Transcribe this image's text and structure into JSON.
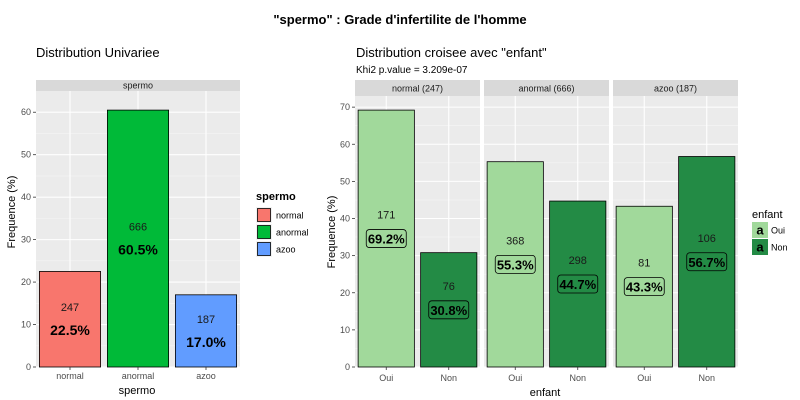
{
  "page": {
    "title": "\"spermo\" : Grade d'infertilite de l'homme"
  },
  "chart_data": [
    {
      "type": "bar",
      "title": "Distribution Univariee",
      "facet_label": "spermo",
      "xlabel": "spermo",
      "ylabel": "Frequence (%)",
      "ylim": [
        0,
        65
      ],
      "yticks": [
        0,
        10,
        20,
        30,
        40,
        50,
        60
      ],
      "grid": true,
      "categories": [
        "normal",
        "anormal",
        "azoo"
      ],
      "counts": [
        "247",
        "666",
        "187"
      ],
      "values": [
        22.5,
        60.5,
        17.0
      ],
      "pct_labels": [
        "22.5%",
        "60.5%",
        "17.0%"
      ],
      "colors": [
        "#F8766D",
        "#00BA38",
        "#619CFF"
      ],
      "legend": {
        "title": "spermo",
        "position": "right",
        "items": [
          "normal",
          "anormal",
          "azoo"
        ]
      }
    },
    {
      "type": "bar",
      "title": "Distribution croisee avec \"enfant\"",
      "subtitle": "Khi2 p.value = 3.209e-07",
      "xlabel": "enfant",
      "ylabel": "Frequence (%)",
      "ylim": [
        0,
        73
      ],
      "yticks": [
        0,
        10,
        20,
        30,
        40,
        50,
        60,
        70
      ],
      "grid": true,
      "categories": [
        "Oui",
        "Non"
      ],
      "colors": [
        "#A1D99B",
        "#238B45"
      ],
      "facets": [
        {
          "label": "normal (247)",
          "counts": [
            "171",
            "76"
          ],
          "values": [
            69.2,
            30.8
          ],
          "pct_labels": [
            "69.2%",
            "30.8%"
          ]
        },
        {
          "label": "anormal (666)",
          "counts": [
            "368",
            "298"
          ],
          "values": [
            55.3,
            44.7
          ],
          "pct_labels": [
            "55.3%",
            "44.7%"
          ]
        },
        {
          "label": "azoo (187)",
          "counts": [
            "81",
            "106"
          ],
          "values": [
            43.3,
            56.7
          ],
          "pct_labels": [
            "43.3%",
            "56.7%"
          ]
        }
      ],
      "legend": {
        "title": "enfant",
        "position": "right",
        "key_glyph": "a",
        "items": [
          "Oui",
          "Non"
        ]
      }
    }
  ]
}
